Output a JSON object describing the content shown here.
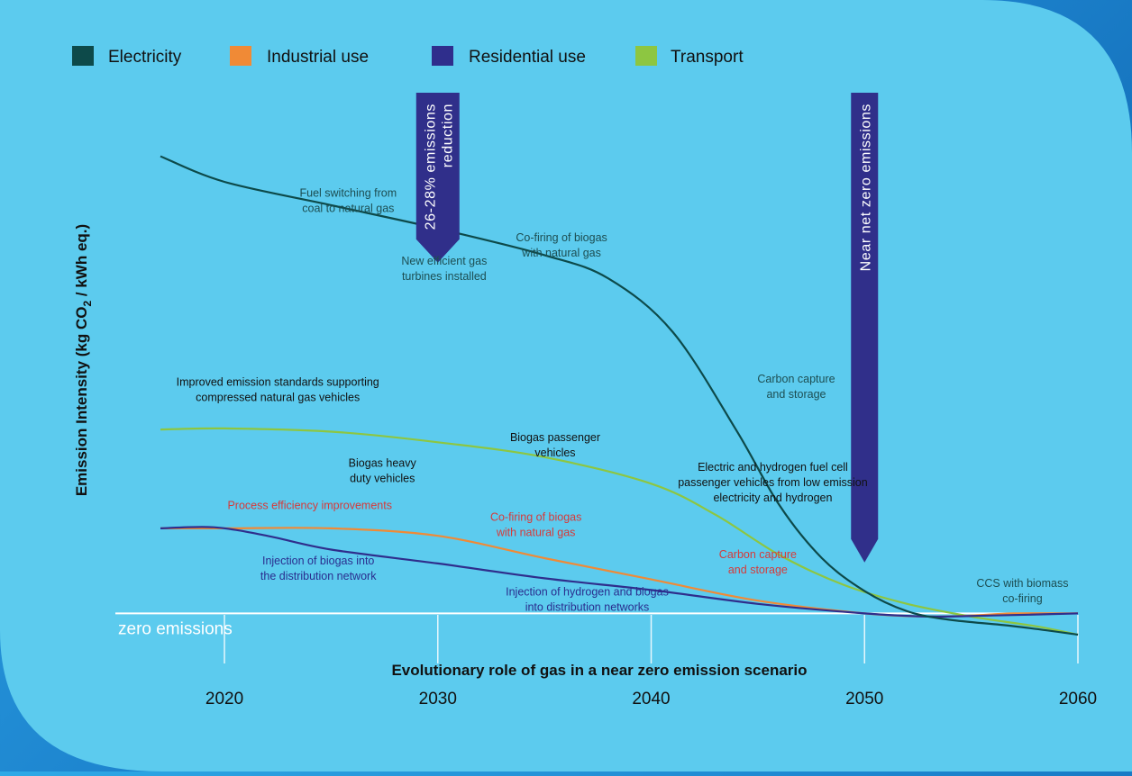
{
  "colors": {
    "panel": "#5ccbee",
    "electricity": "#0d4a4a",
    "industrial": "#f08a36",
    "residential": "#2f2e8c",
    "transport": "#8dc641",
    "zero_line": "#ffffff",
    "callout": "#302f8a",
    "note_dark": "#1d4e52",
    "note_black": "#111111",
    "note_red": "#d63a3a",
    "note_blue": "#2a2d8e"
  },
  "chart_data": {
    "type": "line",
    "title": "",
    "xlabel": "Evolutionary role of gas in a near zero emission scenario",
    "ylabel": "Emission Intensity (kg CO₂ / kWh eq.)",
    "ylabel_parts": [
      "Emission Intensity (kg CO",
      "2",
      " / kWh eq.)"
    ],
    "xlim": [
      2017,
      2060
    ],
    "ylim": [
      -0.2,
      4.5
    ],
    "x_ticks": [
      2020,
      2030,
      2040,
      2050,
      2060
    ],
    "grid": false,
    "legend_position": "top",
    "zero_label": "zero emissions",
    "series": [
      {
        "name": "Electricity",
        "color_key": "electricity",
        "points": [
          [
            2017,
            4.3
          ],
          [
            2020,
            4.06
          ],
          [
            2025,
            3.84
          ],
          [
            2030,
            3.62
          ],
          [
            2035,
            3.37
          ],
          [
            2038,
            3.15
          ],
          [
            2041,
            2.65
          ],
          [
            2044,
            1.72
          ],
          [
            2046,
            1.02
          ],
          [
            2048,
            0.52
          ],
          [
            2050,
            0.21
          ],
          [
            2052,
            0.02
          ],
          [
            2054,
            -0.06
          ],
          [
            2057,
            -0.12
          ],
          [
            2060,
            -0.2
          ]
        ]
      },
      {
        "name": "Industrial use",
        "color_key": "industrial",
        "points": [
          [
            2017,
            0.8
          ],
          [
            2020,
            0.8
          ],
          [
            2025,
            0.8
          ],
          [
            2030,
            0.73
          ],
          [
            2035,
            0.52
          ],
          [
            2040,
            0.32
          ],
          [
            2045,
            0.12
          ],
          [
            2050,
            0.0
          ],
          [
            2053,
            -0.03
          ],
          [
            2055,
            -0.02
          ],
          [
            2057,
            0.0
          ],
          [
            2060,
            0.0
          ]
        ]
      },
      {
        "name": "Residential use",
        "color_key": "residential",
        "points": [
          [
            2017,
            0.8
          ],
          [
            2019.5,
            0.81
          ],
          [
            2022,
            0.73
          ],
          [
            2025,
            0.6
          ],
          [
            2030,
            0.47
          ],
          [
            2035,
            0.33
          ],
          [
            2040,
            0.22
          ],
          [
            2045,
            0.09
          ],
          [
            2050,
            0.0
          ],
          [
            2053,
            -0.03
          ],
          [
            2056,
            -0.02
          ],
          [
            2060,
            0.0
          ]
        ]
      },
      {
        "name": "Transport",
        "color_key": "transport",
        "points": [
          [
            2017,
            1.73
          ],
          [
            2020,
            1.74
          ],
          [
            2025,
            1.71
          ],
          [
            2030,
            1.61
          ],
          [
            2035,
            1.47
          ],
          [
            2040,
            1.22
          ],
          [
            2043,
            0.93
          ],
          [
            2046,
            0.55
          ],
          [
            2049,
            0.27
          ],
          [
            2052,
            0.09
          ],
          [
            2055,
            -0.03
          ],
          [
            2058,
            -0.12
          ],
          [
            2060,
            -0.2
          ]
        ]
      }
    ],
    "callouts": [
      {
        "lines": [
          "26-28% emissions",
          "reduction"
        ],
        "x": 2030,
        "y_tip": 3.3
      },
      {
        "lines": [
          "Near net zero emissions"
        ],
        "x": 2050,
        "y_tip": 0.48
      }
    ],
    "annotations": [
      {
        "lines": [
          "Fuel switching from",
          "coal to natural gas"
        ],
        "x": 2025.8,
        "y": 3.92,
        "color_key": "note_dark"
      },
      {
        "lines": [
          "New efficient gas",
          "turbines installed"
        ],
        "x": 2030.3,
        "y": 3.28,
        "color_key": "note_dark"
      },
      {
        "lines": [
          "Co-firing of biogas",
          "with natural gas"
        ],
        "x": 2035.8,
        "y": 3.5,
        "color_key": "note_dark"
      },
      {
        "lines": [
          "Carbon capture",
          "and storage"
        ],
        "x": 2046.8,
        "y": 2.17,
        "color_key": "note_dark"
      },
      {
        "lines": [
          "Improved emission standards supporting",
          "compressed natural gas vehicles"
        ],
        "x": 2022.5,
        "y": 2.14,
        "color_key": "note_black"
      },
      {
        "lines": [
          "Biogas passenger",
          "vehicles"
        ],
        "x": 2035.5,
        "y": 1.62,
        "color_key": "note_black"
      },
      {
        "lines": [
          "Biogas heavy",
          "duty vehicles"
        ],
        "x": 2027.4,
        "y": 1.38,
        "color_key": "note_black"
      },
      {
        "lines": [
          "Electric and hydrogen fuel cell",
          "passenger vehicles from low emission",
          "electricity and hydrogen"
        ],
        "x": 2045.7,
        "y": 1.34,
        "color_key": "note_black"
      },
      {
        "lines": [
          "Process efficiency improvements"
        ],
        "x": 2024,
        "y": 0.98,
        "color_key": "note_red"
      },
      {
        "lines": [
          "Co-firing of biogas",
          "with natural gas"
        ],
        "x": 2034.6,
        "y": 0.87,
        "color_key": "note_red"
      },
      {
        "lines": [
          "Carbon capture",
          "and storage"
        ],
        "x": 2045,
        "y": 0.52,
        "color_key": "note_red"
      },
      {
        "lines": [
          "Injection of biogas into",
          "the distribution network"
        ],
        "x": 2024.4,
        "y": 0.46,
        "color_key": "note_blue"
      },
      {
        "lines": [
          "Injection of hydrogen and biogas",
          "into distribution networks"
        ],
        "x": 2037,
        "y": 0.17,
        "color_key": "note_blue"
      },
      {
        "lines": [
          "CCS with biomass",
          "co-firing"
        ],
        "x": 2057.4,
        "y": 0.25,
        "color_key": "note_dark"
      }
    ]
  }
}
